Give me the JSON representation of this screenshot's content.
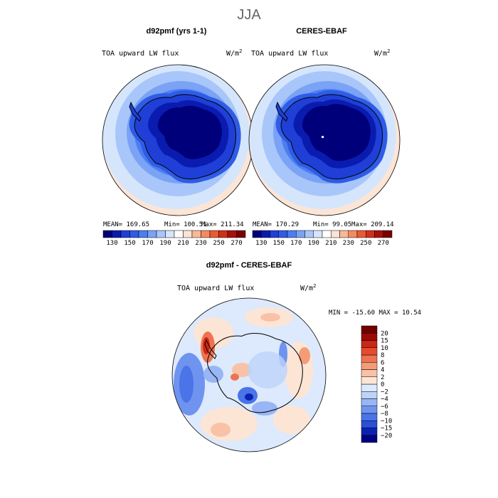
{
  "figure_title": "JJA",
  "chart_data": [
    {
      "type": "heatmap",
      "panel_title": "d92pmf (yrs 1-1)",
      "field_label": "TOA upward LW flux",
      "units": "W/m",
      "units_exp": "2",
      "stats": {
        "mean": "169.65",
        "min": "100.51",
        "max": "211.34"
      },
      "stats_text": {
        "mean": "MEAN= 169.65",
        "min": "Min= 100.51",
        "max": "Max= 211.34"
      },
      "projection": "south-polar-stereographic",
      "colorbar": {
        "orientation": "horizontal",
        "levels": [
          130,
          140,
          150,
          160,
          170,
          180,
          190,
          200,
          210,
          220,
          230,
          240,
          250,
          260,
          270
        ],
        "tick_labels": [
          "130",
          "150",
          "170",
          "190",
          "210",
          "230",
          "250",
          "270"
        ],
        "colors": [
          "#00007a",
          "#0a1bb0",
          "#1f3fd6",
          "#2f5ce6",
          "#4c7ef0",
          "#7aa2f5",
          "#a8c6fa",
          "#d5e6fc",
          "#ffffff",
          "#fde3d2",
          "#f9b896",
          "#f48a62",
          "#ea5a34",
          "#d0301a",
          "#a8100c",
          "#7a0000"
        ]
      }
    },
    {
      "type": "heatmap",
      "panel_title": "CERES-EBAF",
      "field_label": "TOA upward LW flux",
      "units": "W/m",
      "units_exp": "2",
      "stats": {
        "mean": "170.29",
        "min": "99.05",
        "max": "209.14"
      },
      "stats_text": {
        "mean": "MEAN= 170.29",
        "min": "Min=  99.05",
        "max": "Max= 209.14"
      },
      "projection": "south-polar-stereographic",
      "colorbar": {
        "orientation": "horizontal",
        "levels": [
          130,
          140,
          150,
          160,
          170,
          180,
          190,
          200,
          210,
          220,
          230,
          240,
          250,
          260,
          270
        ],
        "tick_labels": [
          "130",
          "150",
          "170",
          "190",
          "210",
          "230",
          "250",
          "270"
        ],
        "colors": [
          "#00007a",
          "#0a1bb0",
          "#1f3fd6",
          "#2f5ce6",
          "#4c7ef0",
          "#7aa2f5",
          "#a8c6fa",
          "#d5e6fc",
          "#ffffff",
          "#fde3d2",
          "#f9b896",
          "#f48a62",
          "#ea5a34",
          "#d0301a",
          "#a8100c",
          "#7a0000"
        ]
      }
    },
    {
      "type": "heatmap",
      "panel_title": "d92pmf - CERES-EBAF",
      "field_label": "TOA upward LW flux",
      "units": "W/m",
      "units_exp": "2",
      "stats": {
        "min": "-15.60",
        "max": "10.54"
      },
      "stats_text": {
        "line": "MIN = -15.60 MAX =  10.54"
      },
      "projection": "south-polar-stereographic",
      "colorbar": {
        "orientation": "vertical",
        "levels": [
          -20,
          -15,
          -10,
          -8,
          -6,
          -4,
          -2,
          0,
          2,
          4,
          6,
          8,
          10,
          15,
          20
        ],
        "tick_labels": [
          "-20",
          "-15",
          "-10",
          "-8",
          "-6",
          "-4",
          "-2",
          "0",
          "2",
          "4",
          "6",
          "8",
          "10",
          "15",
          "20"
        ],
        "colors": [
          "#000080",
          "#0a22b4",
          "#2a4fd8",
          "#4a74e8",
          "#6e94ef",
          "#98b6f5",
          "#bdd3fa",
          "#dde9fc",
          "#fde5d6",
          "#f9c2a6",
          "#f49c78",
          "#ee7350",
          "#e54b2c",
          "#cc2614",
          "#9c0a06",
          "#700000"
        ]
      }
    }
  ]
}
